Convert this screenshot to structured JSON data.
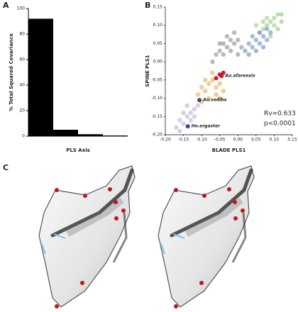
{
  "chart_data": [
    {
      "type": "bar",
      "panel": "A",
      "y_label": "% Total Squared Covariance",
      "x_label": "PLS Axis",
      "categories": [
        null,
        null,
        null,
        null
      ],
      "values": [
        92,
        5,
        1.5,
        0.5
      ],
      "color": "#000000",
      "ylim": [
        0,
        100
      ],
      "yticks": [
        0,
        20,
        40,
        60,
        80,
        100
      ]
    },
    {
      "type": "scatter",
      "panel": "B",
      "x_label": "BLADE PLS1",
      "y_label": "SPINE PLS1",
      "xlim": [
        -0.2,
        0.15
      ],
      "ylim": [
        -0.2,
        0.15
      ],
      "xticks": [
        {
          "value": -0.2,
          "label": "-0.20"
        },
        -0.15,
        {
          "value": -0.1,
          "label": "-0.10"
        },
        -0.05,
        {
          "value": 0,
          "label": "0.00"
        },
        0.05,
        {
          "value": 0.1,
          "label": "0.10"
        },
        0.15
      ],
      "yticks": [
        {
          "value": -0.2,
          "label": "-0.20"
        },
        -0.15,
        {
          "value": -0.1,
          "label": "-0.10"
        },
        -0.05,
        {
          "value": 0,
          "label": "0.00"
        },
        0.05,
        {
          "value": 0.1,
          "label": "0.10"
        },
        0.15
      ],
      "series": [
        {
          "color": "#8cc37a",
          "x": [
            0.06,
            0.07,
            0.08,
            0.09,
            0.1,
            0.11,
            0.12,
            0.1,
            0.08,
            0.09,
            0.11,
            0.07,
            0.12,
            0.05
          ],
          "values": [
            0.08,
            0.09,
            0.1,
            0.11,
            0.12,
            0.13,
            0.11,
            0.1,
            0.12,
            0.07,
            0.09,
            0.11,
            0.13,
            0.1
          ]
        },
        {
          "color": "#5b7fbf",
          "x": [
            0.02,
            0.03,
            0.04,
            0.05,
            0.06,
            0.07,
            0.08,
            0.04,
            0.06,
            0.09,
            0.03,
            0.05,
            0.07,
            0.08
          ],
          "values": [
            0.03,
            0.05,
            0.04,
            0.06,
            0.05,
            0.07,
            0.06,
            0.07,
            0.08,
            0.08,
            0.02,
            0.03,
            0.04,
            0.09
          ]
        },
        {
          "color": "#808080",
          "x": [
            -0.07,
            -0.06,
            -0.05,
            -0.04,
            -0.03,
            -0.02,
            -0.01,
            0,
            0.01,
            -0.03,
            -0.05,
            -0.04,
            0,
            -0.02,
            -0.01
          ],
          "values": [
            0,
            0.02,
            0.03,
            0.05,
            0.04,
            0.06,
            0.05,
            0.06,
            0.04,
            0.07,
            0.05,
            0.02,
            0.02,
            0.03,
            0.08
          ]
        },
        {
          "color": "#e8a33c",
          "x": [
            -0.11,
            -0.1,
            -0.09,
            -0.08,
            -0.07,
            -0.06,
            -0.05,
            -0.08,
            -0.06,
            -0.09,
            -0.07,
            -0.04,
            -0.1,
            -0.05
          ],
          "values": [
            -0.09,
            -0.07,
            -0.08,
            -0.06,
            -0.05,
            -0.07,
            -0.06,
            -0.1,
            -0.09,
            -0.05,
            -0.03,
            -0.08,
            -0.11,
            -0.1
          ]
        },
        {
          "color": "#b7a6d6",
          "x": [
            -0.17,
            -0.16,
            -0.15,
            -0.14,
            -0.13,
            -0.12,
            -0.11,
            -0.15,
            -0.13,
            -0.16,
            -0.12,
            -0.14
          ],
          "values": [
            -0.18,
            -0.16,
            -0.17,
            -0.15,
            -0.14,
            -0.13,
            -0.12,
            -0.14,
            -0.16,
            -0.19,
            -0.15,
            -0.12
          ]
        },
        {
          "color": "#c0161b",
          "x": [
            -0.045,
            -0.05,
            -0.06,
            -0.04
          ],
          "values": [
            -0.039,
            -0.035,
            -0.045,
            -0.03
          ],
          "labels": [
            "Au.afarensis",
            null,
            null,
            null
          ]
        },
        {
          "color": "#3c3a8a",
          "x": [
            -0.106,
            -0.138
          ],
          "values": [
            -0.105,
            -0.177
          ],
          "labels": [
            "Au.sediba",
            "Ho.ergaster"
          ]
        }
      ],
      "annotations": [
        "Rv=0.633",
        "p<0.0001"
      ]
    }
  ],
  "figure_c": {
    "panel": "C"
  }
}
